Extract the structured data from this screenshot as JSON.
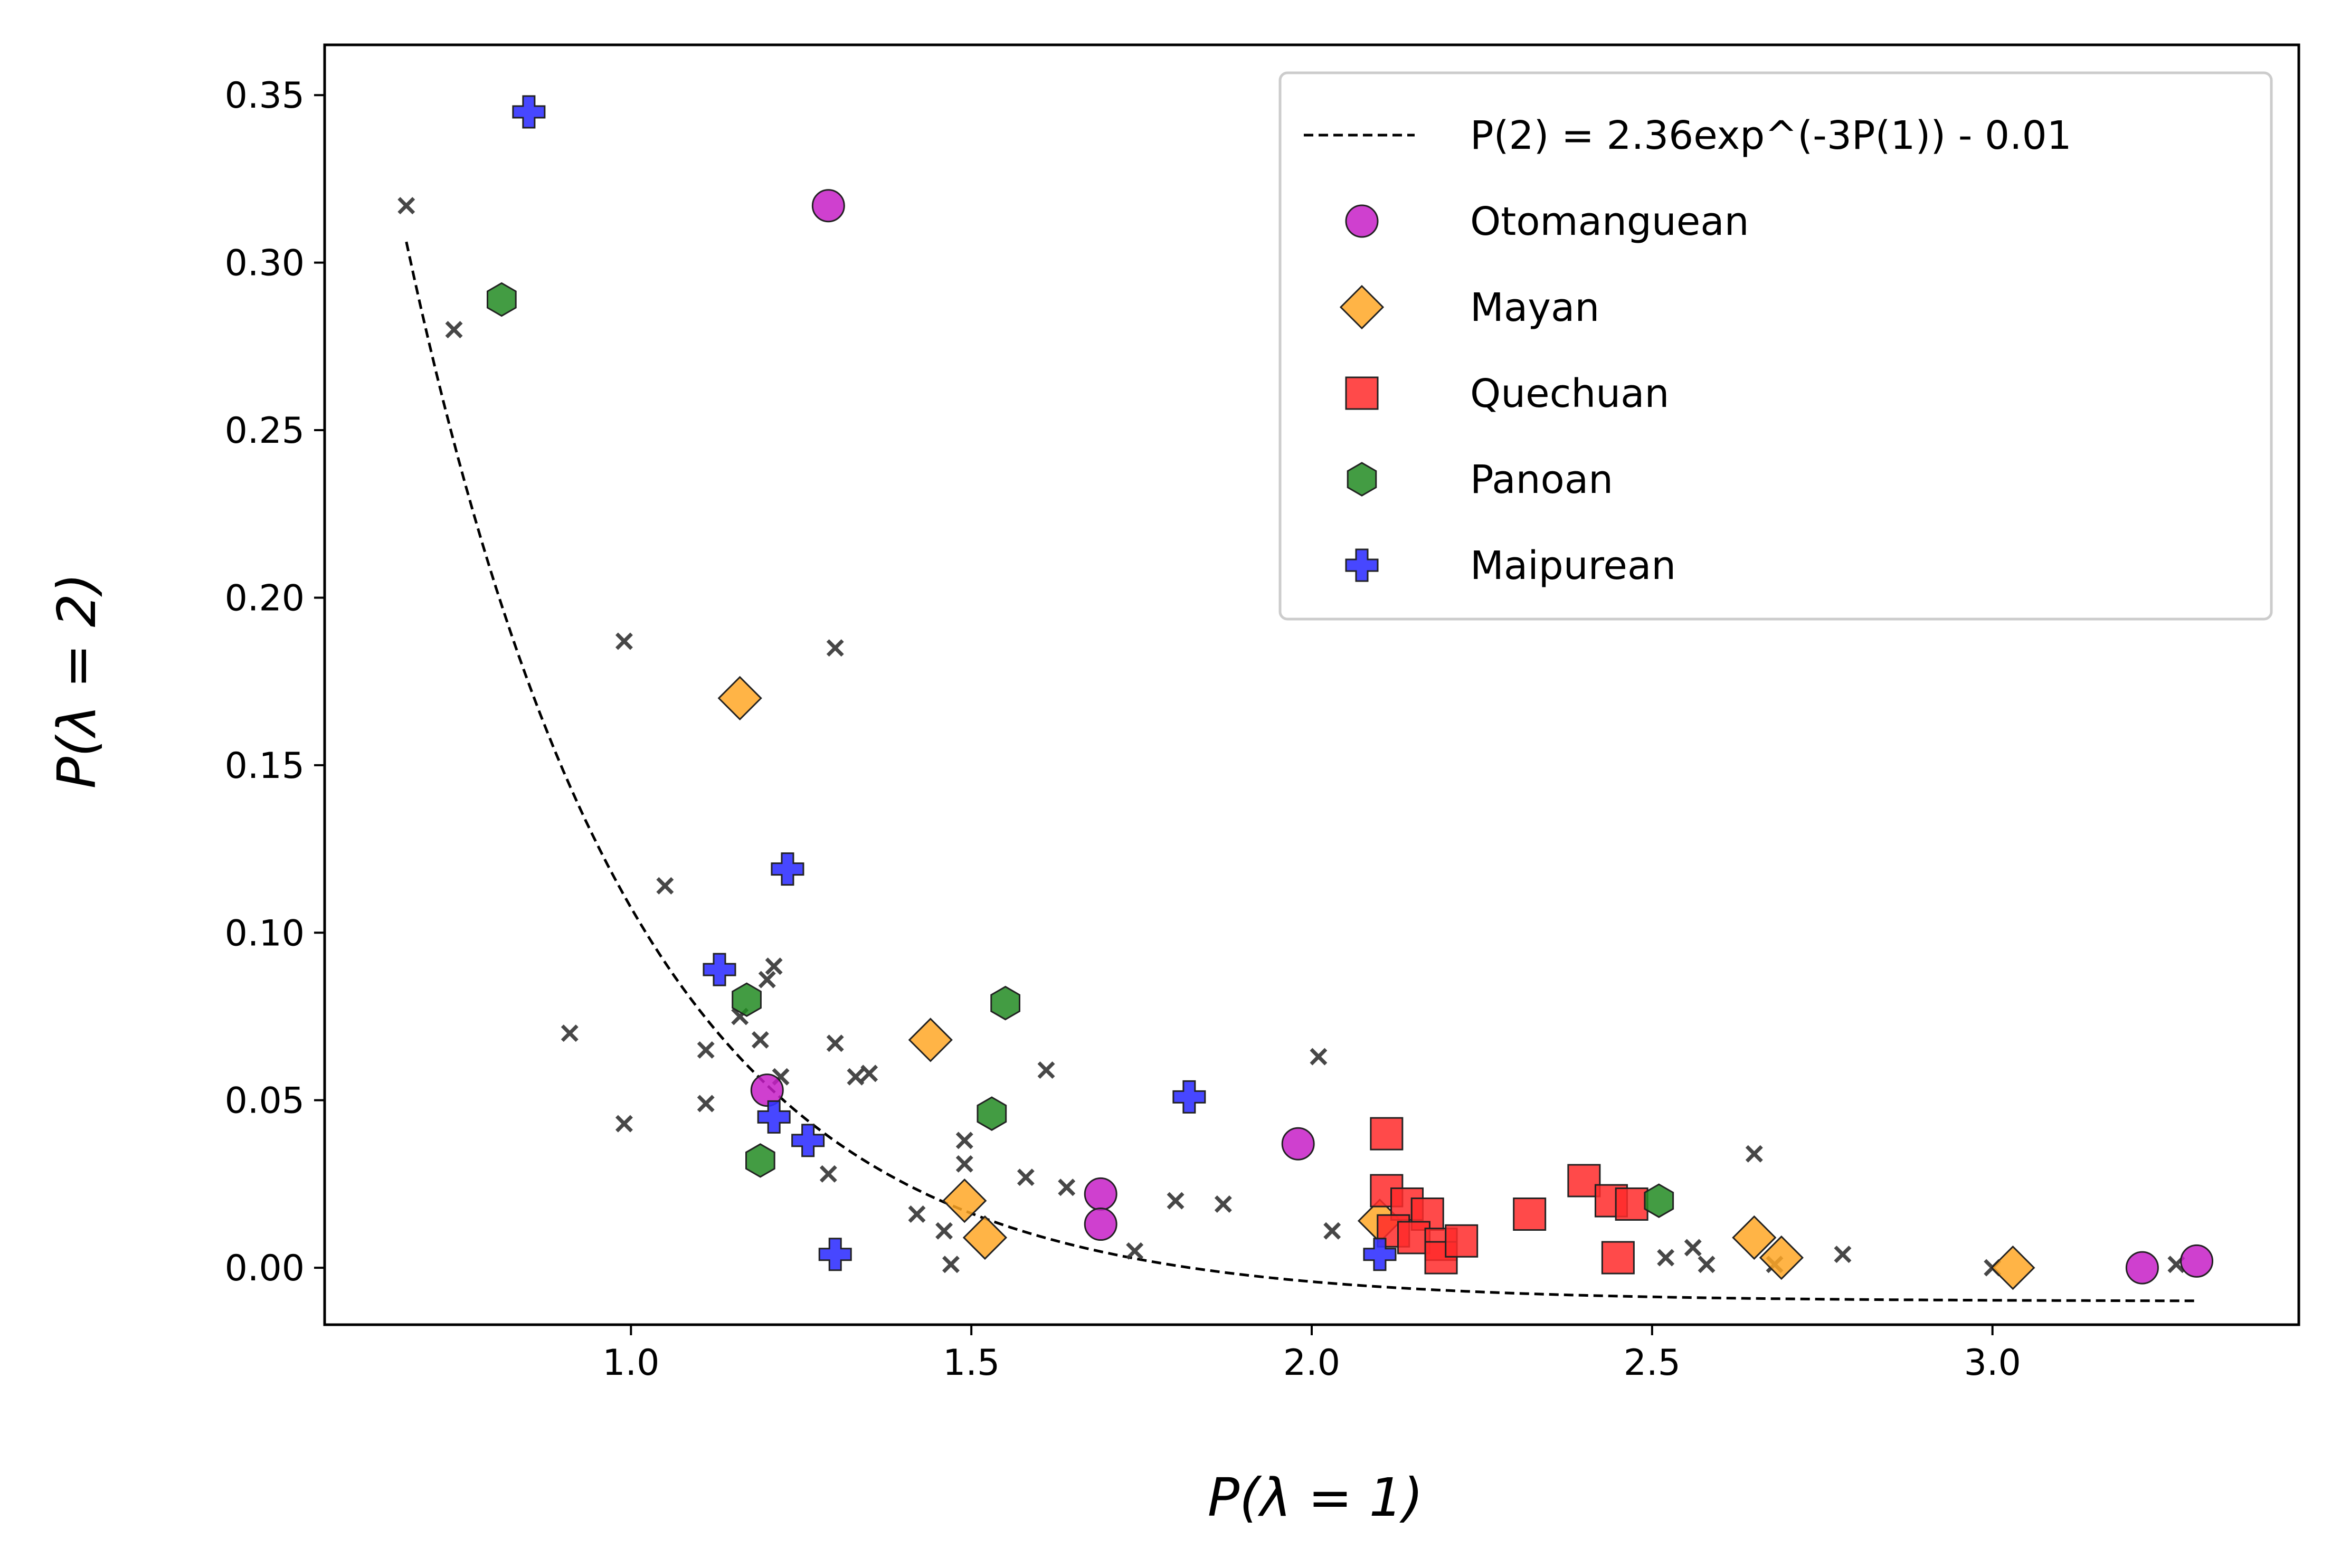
{
  "chart_data": {
    "type": "scatter",
    "xlabel": "P(λ = 1)",
    "ylabel": "P(λ = 2)",
    "xlim": [
      0.55,
      3.45
    ],
    "ylim": [
      -0.017,
      0.365
    ],
    "xticks": [
      "1.0",
      "1.5",
      "2.0",
      "2.5",
      "3.0"
    ],
    "yticks": [
      "0.00",
      "0.05",
      "0.10",
      "0.15",
      "0.20",
      "0.25",
      "0.30",
      "0.35"
    ],
    "legend_position": "top-right",
    "fit_curve": {
      "label": "P(2) = 2.36exp^(-3P(1)) - 0.01",
      "a": 2.36,
      "b": -3,
      "c": -0.01,
      "x_range": [
        0.67,
        3.3
      ],
      "style": "dashed",
      "color": "#000000"
    },
    "series": [
      {
        "name": "Otomanguean",
        "marker": "circle",
        "color": "#c71fc7",
        "points": [
          [
            1.29,
            0.317
          ],
          [
            1.2,
            0.053
          ],
          [
            1.69,
            0.022
          ],
          [
            1.69,
            0.013
          ],
          [
            1.98,
            0.037
          ],
          [
            3.22,
            0.0
          ],
          [
            3.3,
            0.002
          ]
        ]
      },
      {
        "name": "Mayan",
        "marker": "diamond",
        "color": "#ffa726",
        "points": [
          [
            1.16,
            0.17
          ],
          [
            1.44,
            0.068
          ],
          [
            1.49,
            0.02
          ],
          [
            1.52,
            0.009
          ],
          [
            2.1,
            0.014
          ],
          [
            2.65,
            0.009
          ],
          [
            2.69,
            0.003
          ],
          [
            3.03,
            0.0
          ]
        ]
      },
      {
        "name": "Quechuan",
        "marker": "square",
        "color": "#ff2a2a",
        "points": [
          [
            2.11,
            0.04
          ],
          [
            2.11,
            0.023
          ],
          [
            2.14,
            0.019
          ],
          [
            2.17,
            0.016
          ],
          [
            2.12,
            0.011
          ],
          [
            2.15,
            0.009
          ],
          [
            2.19,
            0.007
          ],
          [
            2.19,
            0.003
          ],
          [
            2.22,
            0.008
          ],
          [
            2.32,
            0.016
          ],
          [
            2.4,
            0.026
          ],
          [
            2.44,
            0.02
          ],
          [
            2.47,
            0.019
          ],
          [
            2.45,
            0.003
          ]
        ]
      },
      {
        "name": "Panoan",
        "marker": "hexagon",
        "color": "#228b22",
        "points": [
          [
            0.81,
            0.289
          ],
          [
            1.17,
            0.08
          ],
          [
            1.19,
            0.032
          ],
          [
            1.53,
            0.046
          ],
          [
            1.55,
            0.079
          ],
          [
            2.51,
            0.02
          ]
        ]
      },
      {
        "name": "Maipurean",
        "marker": "plus",
        "color": "#3333ff",
        "points": [
          [
            0.85,
            0.345
          ],
          [
            1.23,
            0.119
          ],
          [
            1.13,
            0.089
          ],
          [
            1.21,
            0.045
          ],
          [
            1.26,
            0.038
          ],
          [
            1.3,
            0.004
          ],
          [
            1.82,
            0.051
          ],
          [
            2.1,
            0.004
          ]
        ]
      },
      {
        "name": "",
        "marker": "x",
        "color": "#333333",
        "points": [
          [
            0.67,
            0.317
          ],
          [
            0.74,
            0.28
          ],
          [
            0.99,
            0.187
          ],
          [
            1.3,
            0.185
          ],
          [
            1.05,
            0.114
          ],
          [
            0.91,
            0.07
          ],
          [
            0.99,
            0.043
          ],
          [
            1.11,
            0.065
          ],
          [
            1.11,
            0.049
          ],
          [
            1.16,
            0.075
          ],
          [
            1.19,
            0.068
          ],
          [
            1.2,
            0.086
          ],
          [
            1.21,
            0.09
          ],
          [
            1.22,
            0.057
          ],
          [
            1.3,
            0.067
          ],
          [
            1.33,
            0.057
          ],
          [
            1.35,
            0.058
          ],
          [
            1.29,
            0.028
          ],
          [
            1.42,
            0.016
          ],
          [
            1.46,
            0.011
          ],
          [
            1.47,
            0.001
          ],
          [
            1.49,
            0.038
          ],
          [
            1.49,
            0.031
          ],
          [
            1.58,
            0.027
          ],
          [
            1.61,
            0.059
          ],
          [
            1.64,
            0.024
          ],
          [
            1.74,
            0.005
          ],
          [
            1.8,
            0.02
          ],
          [
            1.87,
            0.019
          ],
          [
            2.01,
            0.063
          ],
          [
            2.03,
            0.011
          ],
          [
            2.52,
            0.003
          ],
          [
            2.56,
            0.006
          ],
          [
            2.58,
            0.001
          ],
          [
            2.65,
            0.034
          ],
          [
            2.68,
            0.001
          ],
          [
            2.78,
            0.004
          ],
          [
            3.0,
            0.0
          ],
          [
            3.27,
            0.001
          ]
        ]
      }
    ]
  }
}
